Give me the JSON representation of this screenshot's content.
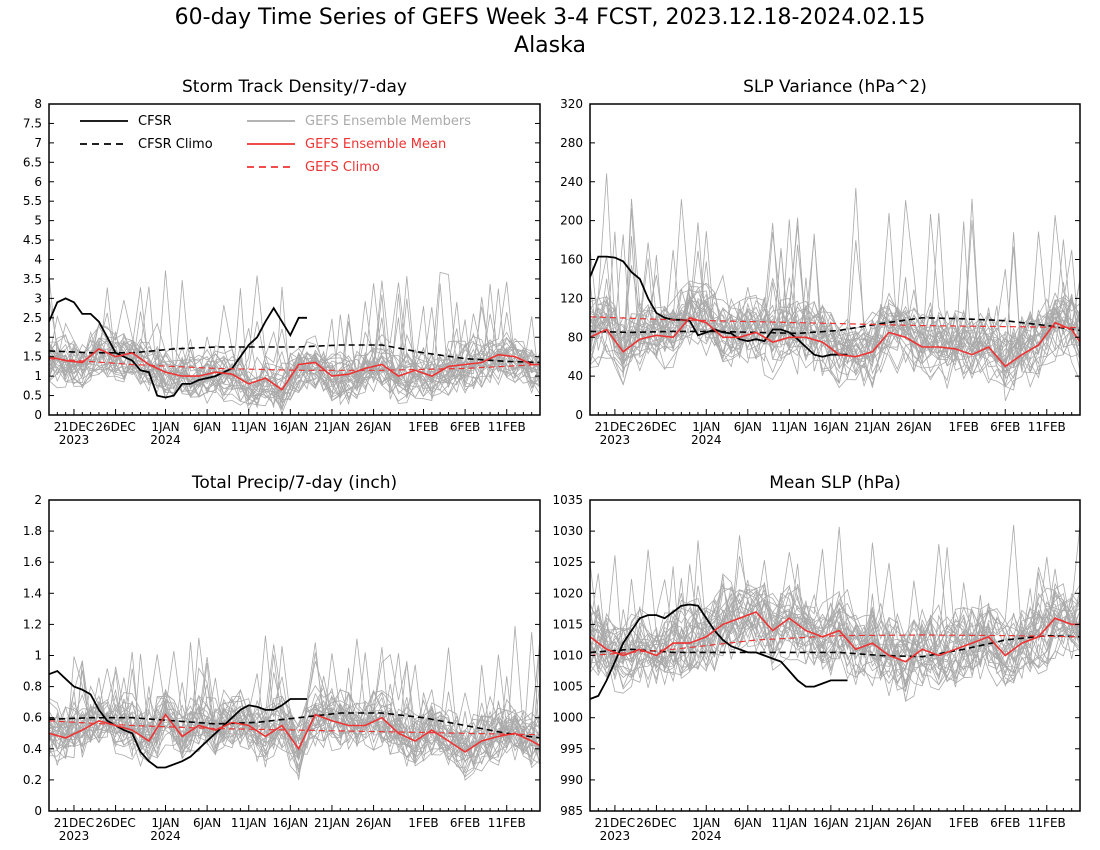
{
  "figure": {
    "title_line1": "60-day Time Series of GEFS Week 3-4 FCST, 2023.12.18-2024.02.15",
    "title_line2": "Alaska"
  },
  "colors": {
    "cfsr": "#000000",
    "members": "#aaaaaa",
    "ens_mean": "#ee3333",
    "gefs_climo": "#ee3333",
    "background": "#ffffff"
  },
  "legend": [
    {
      "label": "CFSR",
      "style": "solid",
      "color": "#000000"
    },
    {
      "label": "CFSR Climo",
      "style": "dashed",
      "color": "#000000"
    },
    {
      "label": "GEFS Ensemble Members",
      "style": "solid",
      "color": "#aaaaaa"
    },
    {
      "label": "GEFS Ensemble Mean",
      "style": "solid",
      "color": "#ee3333"
    },
    {
      "label": "GEFS Climo",
      "style": "dashed",
      "color": "#ee3333"
    }
  ],
  "x_axis": {
    "tick_days": [
      3,
      8,
      14,
      19,
      24,
      29,
      34,
      39,
      45,
      50,
      55
    ],
    "tick_labels": [
      "21DEC",
      "26DEC",
      "1JAN",
      "6JAN",
      "11JAN",
      "16JAN",
      "21JAN",
      "26JAN",
      "1FEB",
      "6FEB",
      "11FEB"
    ],
    "year_labels": [
      {
        "day": 3,
        "text": "2023"
      },
      {
        "day": 14,
        "text": "2024"
      }
    ],
    "xlim": [
      0,
      59
    ]
  },
  "chart_data": [
    {
      "type": "line",
      "title": "Storm Track Density/7-day",
      "ylim": [
        0,
        8
      ],
      "yticks": [
        "0",
        "0.5",
        "1",
        "1.5",
        "2",
        "2.5",
        "3",
        "3.5",
        "4",
        "4.5",
        "5",
        "5.5",
        "6",
        "6.5",
        "7",
        "7.5",
        "8"
      ],
      "show_legend": true,
      "members": {
        "count": 31,
        "center": 1.4,
        "spread": 0.55,
        "max": 4.3
      },
      "series": [
        {
          "name": "CFSR",
          "x": [
            0,
            1,
            2,
            3,
            4,
            5,
            6,
            7,
            8,
            9,
            10,
            11,
            12,
            13,
            14,
            15,
            16,
            17,
            18,
            19,
            20,
            21,
            22,
            23,
            24,
            25,
            26,
            27,
            28,
            29,
            30,
            31
          ],
          "values": [
            2.4,
            2.9,
            3.0,
            2.9,
            2.6,
            2.6,
            2.4,
            2.0,
            1.6,
            1.5,
            1.4,
            1.15,
            1.1,
            0.5,
            0.45,
            0.5,
            0.8,
            0.8,
            0.9,
            0.95,
            1.0,
            1.1,
            1.2,
            1.5,
            1.8,
            2.0,
            2.4,
            2.75,
            2.4,
            2.05,
            2.5,
            2.5
          ]
        },
        {
          "name": "CFSR Climo",
          "x": [
            0,
            5,
            10,
            15,
            20,
            25,
            30,
            35,
            40,
            45,
            50,
            55,
            59
          ],
          "values": [
            1.65,
            1.6,
            1.6,
            1.7,
            1.75,
            1.75,
            1.75,
            1.8,
            1.8,
            1.6,
            1.45,
            1.38,
            1.35
          ]
        },
        {
          "name": "GEFS Ensemble Mean",
          "x": [
            0,
            2,
            4,
            6,
            8,
            10,
            12,
            14,
            16,
            18,
            20,
            22,
            24,
            26,
            28,
            30,
            32,
            34,
            36,
            38,
            40,
            42,
            44,
            46,
            48,
            50,
            52,
            54,
            56,
            58,
            59
          ],
          "values": [
            1.5,
            1.4,
            1.35,
            1.7,
            1.5,
            1.6,
            1.3,
            1.1,
            1.0,
            1.0,
            1.1,
            1.05,
            0.8,
            0.95,
            0.65,
            1.3,
            1.35,
            1.0,
            1.05,
            1.2,
            1.3,
            1.0,
            1.15,
            1.0,
            1.25,
            1.3,
            1.35,
            1.55,
            1.5,
            1.3,
            1.3
          ]
        },
        {
          "name": "GEFS Climo",
          "x": [
            0,
            10,
            20,
            30,
            40,
            50,
            59
          ],
          "values": [
            1.45,
            1.3,
            1.2,
            1.15,
            1.15,
            1.2,
            1.3
          ]
        }
      ]
    },
    {
      "type": "line",
      "title": "SLP Variance (hPa^2)",
      "ylim": [
        0,
        320
      ],
      "yticks": [
        "0",
        "40",
        "80",
        "120",
        "160",
        "200",
        "240",
        "280",
        "320"
      ],
      "show_legend": false,
      "members": {
        "count": 31,
        "center": 85,
        "spread": 30,
        "max": 250
      },
      "series": [
        {
          "name": "CFSR",
          "x": [
            0,
            1,
            2,
            3,
            4,
            5,
            6,
            7,
            8,
            9,
            10,
            11,
            12,
            13,
            14,
            15,
            16,
            17,
            18,
            19,
            20,
            21,
            22,
            23,
            24,
            25,
            26,
            27,
            28,
            29,
            30,
            31
          ],
          "values": [
            142,
            163,
            163,
            162,
            158,
            147,
            140,
            120,
            105,
            100,
            98,
            98,
            97,
            82,
            85,
            88,
            85,
            84,
            78,
            76,
            78,
            76,
            88,
            88,
            85,
            78,
            70,
            62,
            60,
            62,
            62,
            62
          ]
        },
        {
          "name": "CFSR Climo",
          "x": [
            0,
            5,
            10,
            15,
            20,
            25,
            30,
            35,
            40,
            45,
            50,
            55,
            59
          ],
          "values": [
            86,
            85,
            86,
            86,
            85,
            84,
            87,
            94,
            100,
            99,
            97,
            92,
            87
          ]
        },
        {
          "name": "GEFS Ensemble Mean",
          "x": [
            0,
            2,
            4,
            6,
            8,
            10,
            12,
            14,
            16,
            18,
            20,
            22,
            24,
            26,
            28,
            30,
            32,
            34,
            36,
            38,
            40,
            42,
            44,
            46,
            48,
            50,
            52,
            54,
            56,
            58,
            59
          ],
          "values": [
            80,
            88,
            65,
            78,
            82,
            80,
            100,
            95,
            80,
            80,
            85,
            75,
            80,
            80,
            75,
            62,
            60,
            65,
            85,
            80,
            70,
            70,
            68,
            62,
            70,
            50,
            62,
            72,
            95,
            88,
            75
          ]
        },
        {
          "name": "GEFS Climo",
          "x": [
            0,
            10,
            20,
            30,
            40,
            50,
            59
          ],
          "values": [
            101,
            98,
            96,
            94,
            92,
            91,
            90
          ]
        }
      ]
    },
    {
      "type": "line",
      "title": "Total Precip/7-day (inch)",
      "ylim": [
        0,
        2
      ],
      "yticks": [
        "0",
        "0.2",
        "0.4",
        "0.6",
        "0.8",
        "1",
        "1.2",
        "1.4",
        "1.6",
        "1.8",
        "2"
      ],
      "show_legend": false,
      "members": {
        "count": 31,
        "center": 0.52,
        "spread": 0.17,
        "max": 1.25
      },
      "series": [
        {
          "name": "CFSR",
          "x": [
            0,
            1,
            2,
            3,
            4,
            5,
            6,
            7,
            8,
            9,
            10,
            11,
            12,
            13,
            14,
            15,
            16,
            17,
            18,
            19,
            20,
            21,
            22,
            23,
            24,
            25,
            26,
            27,
            28,
            29,
            30,
            31
          ],
          "values": [
            0.88,
            0.9,
            0.85,
            0.8,
            0.78,
            0.75,
            0.65,
            0.58,
            0.55,
            0.52,
            0.5,
            0.38,
            0.32,
            0.28,
            0.28,
            0.3,
            0.32,
            0.35,
            0.4,
            0.45,
            0.5,
            0.55,
            0.6,
            0.65,
            0.68,
            0.67,
            0.65,
            0.65,
            0.68,
            0.72,
            0.72,
            0.72
          ]
        },
        {
          "name": "CFSR Climo",
          "x": [
            0,
            5,
            10,
            15,
            20,
            25,
            30,
            35,
            40,
            45,
            50,
            55,
            59
          ],
          "values": [
            0.59,
            0.6,
            0.6,
            0.58,
            0.56,
            0.57,
            0.6,
            0.63,
            0.63,
            0.6,
            0.55,
            0.5,
            0.47
          ]
        },
        {
          "name": "GEFS Ensemble Mean",
          "x": [
            0,
            2,
            4,
            6,
            8,
            10,
            12,
            14,
            16,
            18,
            20,
            22,
            24,
            26,
            28,
            30,
            32,
            34,
            36,
            38,
            40,
            42,
            44,
            46,
            48,
            50,
            52,
            54,
            56,
            58,
            59
          ],
          "values": [
            0.5,
            0.47,
            0.52,
            0.58,
            0.55,
            0.52,
            0.45,
            0.62,
            0.48,
            0.55,
            0.52,
            0.57,
            0.55,
            0.48,
            0.55,
            0.4,
            0.62,
            0.58,
            0.55,
            0.55,
            0.6,
            0.5,
            0.45,
            0.52,
            0.45,
            0.38,
            0.45,
            0.48,
            0.5,
            0.45,
            0.42
          ]
        },
        {
          "name": "GEFS Climo",
          "x": [
            0,
            10,
            20,
            30,
            40,
            50,
            59
          ],
          "values": [
            0.58,
            0.55,
            0.53,
            0.52,
            0.51,
            0.5,
            0.49
          ]
        }
      ]
    },
    {
      "type": "line",
      "title": "Mean SLP (hPa)",
      "ylim": [
        985,
        1035
      ],
      "yticks": [
        "985",
        "990",
        "995",
        "1000",
        "1005",
        "1010",
        "1015",
        "1020",
        "1025",
        "1030",
        "1035"
      ],
      "show_legend": false,
      "members": {
        "count": 31,
        "center": 1012,
        "spread": 5,
        "max": 1031
      },
      "series": [
        {
          "name": "CFSR",
          "x": [
            0,
            1,
            2,
            3,
            4,
            5,
            6,
            7,
            8,
            9,
            10,
            11,
            12,
            13,
            14,
            15,
            16,
            17,
            18,
            19,
            20,
            21,
            22,
            23,
            24,
            25,
            26,
            27,
            28,
            29,
            30,
            31
          ],
          "values": [
            1003,
            1003.5,
            1006,
            1009,
            1012,
            1014,
            1016,
            1016.5,
            1016.5,
            1016,
            1017,
            1018,
            1018.2,
            1018,
            1016,
            1014,
            1012.5,
            1011.5,
            1011,
            1010.5,
            1010.5,
            1010,
            1009.5,
            1009,
            1007.5,
            1006,
            1005,
            1005,
            1005.5,
            1006,
            1006,
            1006
          ]
        },
        {
          "name": "CFSR Climo",
          "x": [
            0,
            5,
            10,
            15,
            20,
            25,
            30,
            35,
            40,
            45,
            50,
            55,
            59
          ],
          "values": [
            1010.5,
            1011,
            1010.5,
            1010.5,
            1010.5,
            1010.5,
            1010.5,
            1010,
            1009.8,
            1011,
            1012.5,
            1013.2,
            1013
          ]
        },
        {
          "name": "GEFS Ensemble Mean",
          "x": [
            0,
            2,
            4,
            6,
            8,
            10,
            12,
            14,
            16,
            18,
            20,
            22,
            24,
            26,
            28,
            30,
            32,
            34,
            36,
            38,
            40,
            42,
            44,
            46,
            48,
            50,
            52,
            54,
            56,
            58,
            59
          ],
          "values": [
            1013,
            1011,
            1010,
            1011,
            1010,
            1012,
            1012,
            1013,
            1015,
            1016,
            1017,
            1014,
            1016,
            1014,
            1013,
            1014,
            1011,
            1012,
            1010,
            1009,
            1011,
            1010,
            1011,
            1012,
            1013,
            1010,
            1012,
            1013,
            1016,
            1015,
            1015
          ]
        },
        {
          "name": "GEFS Climo",
          "x": [
            0,
            10,
            20,
            30,
            40,
            50,
            59
          ],
          "values": [
            1010,
            1011,
            1012.5,
            1013.2,
            1013.3,
            1013.2,
            1013
          ]
        }
      ]
    }
  ]
}
